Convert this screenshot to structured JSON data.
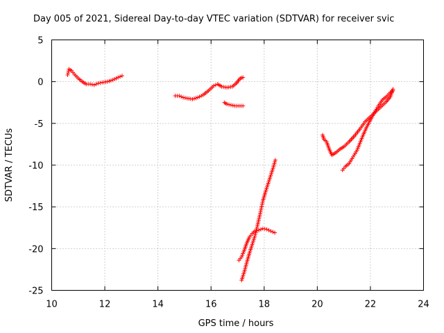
{
  "chart_data": {
    "type": "scatter",
    "title": "Day 005 of 2021, Sidereal Day-to-day VTEC variation (SDTVAR) for receiver svic",
    "xlabel": "GPS time / hours",
    "ylabel": "SDTVAR / TECUs",
    "xlim": [
      10,
      24
    ],
    "ylim": [
      -25,
      5
    ],
    "xticks": [
      10,
      12,
      14,
      16,
      18,
      20,
      22,
      24
    ],
    "yticks": [
      -25,
      -20,
      -15,
      -10,
      -5,
      0,
      5
    ],
    "grid": true,
    "marker": "+",
    "color": "#ff0000",
    "series": [
      {
        "points": [
          [
            10.6,
            0.8
          ],
          [
            10.65,
            1.5
          ],
          [
            10.75,
            1.3
          ],
          [
            10.85,
            0.9
          ],
          [
            11.0,
            0.4
          ],
          [
            11.15,
            0.0
          ],
          [
            11.3,
            -0.3
          ],
          [
            11.45,
            -0.3
          ],
          [
            11.6,
            -0.4
          ],
          [
            11.75,
            -0.2
          ],
          [
            11.9,
            -0.1
          ],
          [
            12.1,
            0.0
          ],
          [
            12.3,
            0.2
          ],
          [
            12.5,
            0.5
          ],
          [
            12.65,
            0.7
          ]
        ]
      },
      {
        "points": [
          [
            14.65,
            -1.7
          ],
          [
            14.8,
            -1.7
          ],
          [
            14.95,
            -1.9
          ],
          [
            15.1,
            -2.0
          ],
          [
            15.3,
            -2.1
          ],
          [
            15.5,
            -1.9
          ],
          [
            15.7,
            -1.6
          ],
          [
            15.9,
            -1.1
          ],
          [
            16.1,
            -0.5
          ],
          [
            16.25,
            -0.3
          ],
          [
            16.4,
            -0.6
          ],
          [
            16.6,
            -0.7
          ],
          [
            16.8,
            -0.6
          ],
          [
            16.95,
            -0.2
          ],
          [
            17.1,
            0.4
          ],
          [
            17.2,
            0.5
          ]
        ]
      },
      {
        "points": [
          [
            16.5,
            -2.5
          ],
          [
            16.6,
            -2.7
          ],
          [
            16.75,
            -2.8
          ],
          [
            16.9,
            -2.9
          ],
          [
            17.05,
            -2.9
          ],
          [
            17.2,
            -2.9
          ]
        ]
      },
      {
        "points": [
          [
            17.15,
            -23.8
          ],
          [
            17.25,
            -22.8
          ],
          [
            17.35,
            -21.6
          ],
          [
            17.45,
            -20.5
          ],
          [
            17.55,
            -19.5
          ],
          [
            17.65,
            -18.5
          ],
          [
            17.75,
            -17.2
          ],
          [
            17.85,
            -15.8
          ],
          [
            17.95,
            -14.3
          ],
          [
            18.05,
            -13.2
          ],
          [
            18.15,
            -12.2
          ],
          [
            18.25,
            -11.2
          ],
          [
            18.35,
            -10.2
          ],
          [
            18.42,
            -9.4
          ]
        ]
      },
      {
        "points": [
          [
            17.05,
            -21.4
          ],
          [
            17.15,
            -21.0
          ],
          [
            17.25,
            -20.2
          ],
          [
            17.35,
            -19.3
          ],
          [
            17.45,
            -18.6
          ],
          [
            17.55,
            -18.2
          ],
          [
            17.65,
            -17.9
          ],
          [
            17.8,
            -17.8
          ],
          [
            17.95,
            -17.6
          ],
          [
            18.1,
            -17.7
          ],
          [
            18.25,
            -17.9
          ],
          [
            18.4,
            -18.1
          ]
        ]
      },
      {
        "points": [
          [
            20.2,
            -6.4
          ],
          [
            20.25,
            -6.9
          ],
          [
            20.35,
            -7.2
          ],
          [
            20.45,
            -8.1
          ],
          [
            20.55,
            -8.8
          ],
          [
            20.7,
            -8.5
          ],
          [
            20.85,
            -8.1
          ],
          [
            21.0,
            -7.8
          ],
          [
            21.2,
            -7.2
          ],
          [
            21.4,
            -6.5
          ],
          [
            21.6,
            -5.7
          ],
          [
            21.8,
            -4.8
          ],
          [
            22.0,
            -4.2
          ],
          [
            22.2,
            -3.6
          ],
          [
            22.4,
            -3.0
          ],
          [
            22.6,
            -2.4
          ],
          [
            22.75,
            -1.8
          ],
          [
            22.85,
            -0.9
          ]
        ]
      },
      {
        "points": [
          [
            20.95,
            -10.6
          ],
          [
            21.05,
            -10.2
          ],
          [
            21.2,
            -9.8
          ],
          [
            21.35,
            -9.0
          ],
          [
            21.5,
            -8.2
          ],
          [
            21.6,
            -7.4
          ],
          [
            21.7,
            -6.6
          ],
          [
            21.85,
            -5.5
          ],
          [
            22.0,
            -4.6
          ],
          [
            22.15,
            -3.7
          ],
          [
            22.3,
            -2.9
          ],
          [
            22.45,
            -2.2
          ],
          [
            22.6,
            -1.8
          ],
          [
            22.75,
            -1.3
          ],
          [
            22.85,
            -1.1
          ]
        ]
      }
    ]
  }
}
